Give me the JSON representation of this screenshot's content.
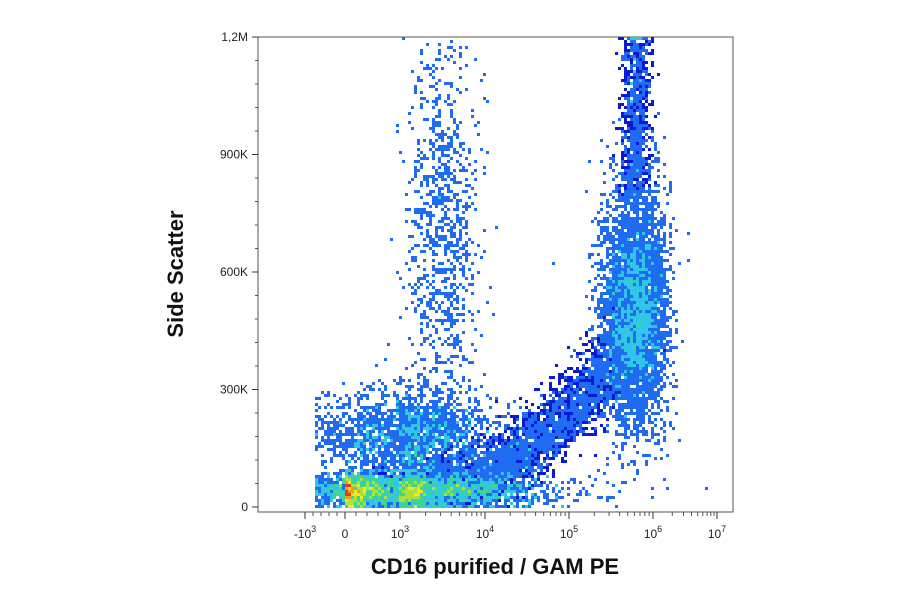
{
  "chart_data": {
    "type": "scatter",
    "subtype": "flow-cytometry-density-dot-plot",
    "title": "",
    "xlabel": "CD16 purified / GAM PE",
    "ylabel": "Side Scatter",
    "x_scale": "biexponential",
    "x_ticks": [
      {
        "value": -1000,
        "label": "-10",
        "exp": "3"
      },
      {
        "value": 0,
        "label": "0",
        "exp": ""
      },
      {
        "value": 1000,
        "label": "10",
        "exp": "3"
      },
      {
        "value": 10000,
        "label": "10",
        "exp": "4"
      },
      {
        "value": 100000,
        "label": "10",
        "exp": "5"
      },
      {
        "value": 1000000,
        "label": "10",
        "exp": "6"
      },
      {
        "value": 10000000,
        "label": "10",
        "exp": "7"
      }
    ],
    "y_scale": "linear",
    "ylim": [
      0,
      1200000
    ],
    "y_ticks": [
      {
        "value": 0,
        "label": "0"
      },
      {
        "value": 300000,
        "label": "300K"
      },
      {
        "value": 600000,
        "label": "600K"
      },
      {
        "value": 900000,
        "label": "900K"
      },
      {
        "value": 1200000,
        "label": "1,2M"
      }
    ],
    "grid": false,
    "density_colormap": [
      "#0b18d6",
      "#1f6cf2",
      "#2fc6e8",
      "#3ed68c",
      "#a8e23a",
      "#f5e61e",
      "#f59a1c",
      "#e8391a"
    ],
    "populations": [
      {
        "name": "low-SSC negatives",
        "x_center": 1000,
        "y_center": 40000,
        "x_spread_decades": 0.9,
        "y_spread": 22000,
        "peak_density": 0.75
      },
      {
        "name": "intermediate-SSC negatives",
        "x_center": 1800,
        "y_center": 180000,
        "x_spread_decades": 0.45,
        "y_spread": 55000,
        "peak_density": 0.45
      },
      {
        "name": "CD16 positive high-SSC",
        "x_center": 620000,
        "y_center": 510000,
        "x_spread_decades": 0.2,
        "y_spread": 150000,
        "peak_density": 1.0
      },
      {
        "name": "sparse vertical streak",
        "x_center": 3200,
        "y_center": 700000,
        "x_spread_decades": 0.2,
        "y_spread": 250000,
        "peak_density": 0.22
      }
    ]
  }
}
